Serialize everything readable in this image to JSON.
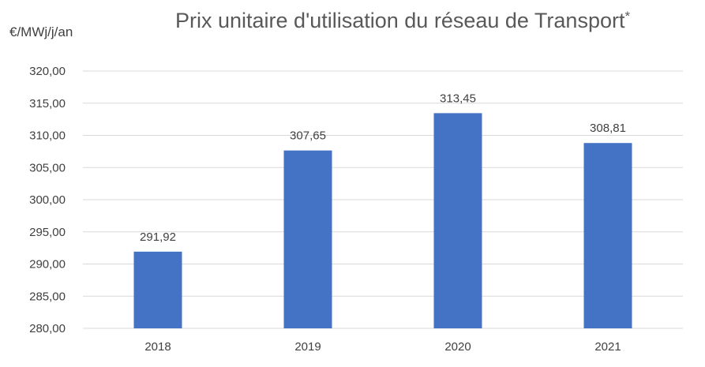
{
  "chart_data": {
    "type": "bar",
    "title": "Prix unitaire d'utilisation du réseau de Transport",
    "title_suffix": "*",
    "xlabel": "",
    "ylabel": "€/MWj/j/an",
    "categories": [
      "2018",
      "2019",
      "2020",
      "2021"
    ],
    "values": [
      291.92,
      307.65,
      313.45,
      308.81
    ],
    "data_labels": [
      "291,92",
      "307,65",
      "313,45",
      "308,81"
    ],
    "ylim": [
      280,
      320
    ],
    "ytick_values": [
      280,
      285,
      290,
      295,
      300,
      305,
      310,
      315,
      320
    ],
    "ytick_labels": [
      "280,00",
      "285,00",
      "290,00",
      "295,00",
      "300,00",
      "305,00",
      "310,00",
      "315,00",
      "320,00"
    ],
    "grid": true,
    "legend": "none",
    "bar_color": "#4472C4",
    "grid_color": "#D9D9D9"
  }
}
